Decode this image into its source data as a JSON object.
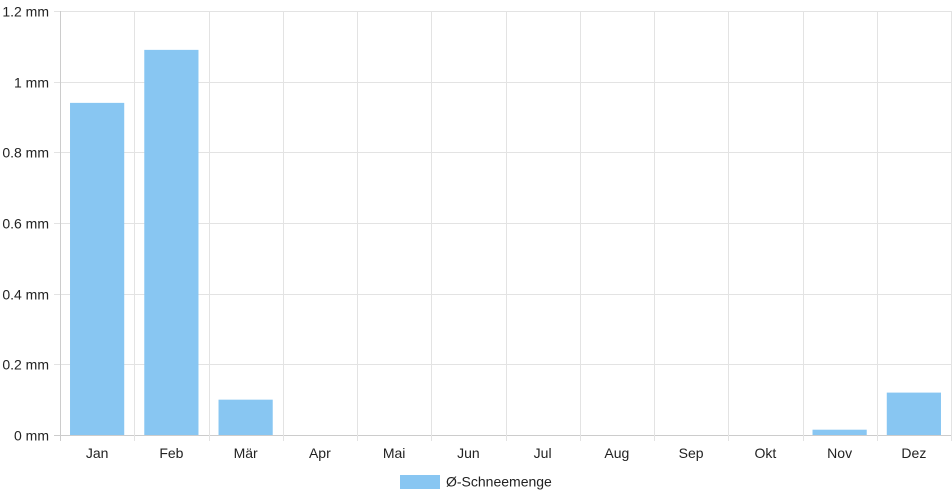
{
  "chart_data": {
    "type": "bar",
    "categories": [
      "Jan",
      "Feb",
      "Mär",
      "Apr",
      "Mai",
      "Jun",
      "Jul",
      "Aug",
      "Sep",
      "Okt",
      "Nov",
      "Dez"
    ],
    "series": [
      {
        "name": "Ø-Schneemenge",
        "color": "#88c6f2",
        "values": [
          0.94,
          1.09,
          0.1,
          0,
          0,
          0,
          0,
          0,
          0,
          0,
          0.015,
          0.12
        ]
      }
    ],
    "y_ticks": [
      "0 mm",
      "0.2 mm",
      "0.4 mm",
      "0.6 mm",
      "0.8 mm",
      "1 mm",
      "1.2 mm"
    ],
    "ylim": [
      0,
      1.2
    ],
    "grid": true,
    "legend_position": "bottom-center",
    "title": "",
    "xlabel": "",
    "ylabel": ""
  }
}
